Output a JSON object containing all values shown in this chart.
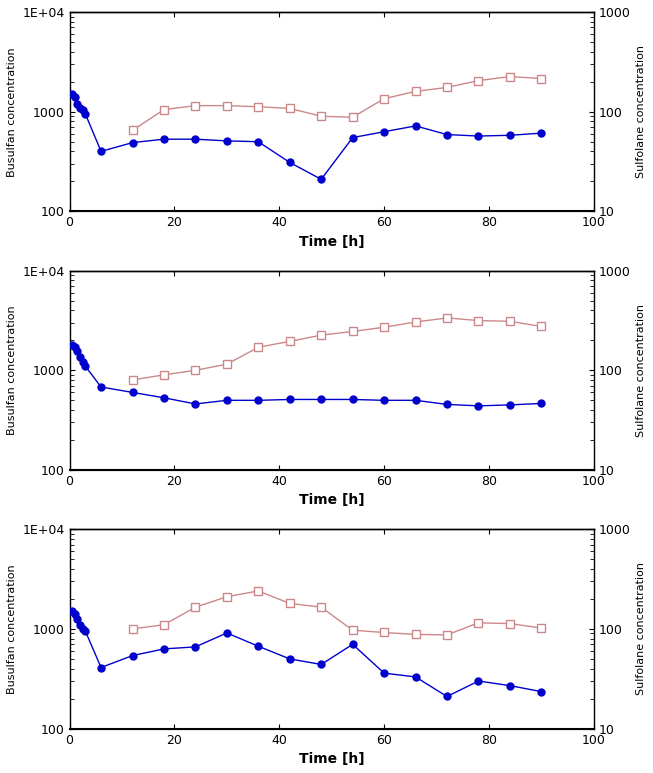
{
  "panel1": {
    "busulfan_x": [
      0.5,
      1,
      1.5,
      2,
      2.5,
      3,
      6,
      12,
      18,
      24,
      30,
      36,
      42,
      48,
      54,
      60,
      66,
      72,
      78,
      84,
      90
    ],
    "busulfan_y": [
      1500,
      1400,
      1200,
      1100,
      1050,
      950,
      400,
      490,
      530,
      530,
      510,
      500,
      310,
      210,
      550,
      630,
      720,
      590,
      570,
      580,
      610
    ],
    "sulfolane_x": [
      12,
      18,
      24,
      30,
      36,
      42,
      48,
      54,
      60,
      66,
      72,
      78,
      84,
      90
    ],
    "sulfolane_y": [
      65,
      105,
      115,
      115,
      112,
      108,
      90,
      88,
      135,
      160,
      175,
      205,
      225,
      215
    ]
  },
  "panel2": {
    "busulfan_x": [
      0.5,
      1,
      1.5,
      2,
      2.5,
      3,
      6,
      12,
      18,
      24,
      30,
      36,
      42,
      48,
      54,
      60,
      66,
      72,
      78,
      84,
      90
    ],
    "busulfan_y": [
      1800,
      1700,
      1550,
      1350,
      1200,
      1100,
      680,
      600,
      530,
      460,
      500,
      500,
      510,
      510,
      510,
      500,
      500,
      455,
      440,
      450,
      465
    ],
    "sulfolane_x": [
      12,
      18,
      24,
      30,
      36,
      42,
      48,
      54,
      60,
      66,
      72,
      78,
      84,
      90
    ],
    "sulfolane_y": [
      80,
      90,
      100,
      115,
      170,
      195,
      225,
      245,
      270,
      305,
      335,
      315,
      310,
      275
    ]
  },
  "panel3": {
    "busulfan_x": [
      0.5,
      1,
      1.5,
      2,
      2.5,
      3,
      6,
      12,
      18,
      24,
      30,
      36,
      42,
      48,
      54,
      60,
      66,
      72,
      78,
      84,
      90
    ],
    "busulfan_y": [
      1500,
      1400,
      1250,
      1100,
      1000,
      950,
      410,
      540,
      630,
      660,
      910,
      670,
      500,
      440,
      700,
      360,
      330,
      210,
      300,
      270,
      235
    ],
    "sulfolane_x": [
      12,
      18,
      24,
      30,
      36,
      42,
      48,
      54,
      60,
      66,
      72,
      78,
      84,
      90
    ],
    "sulfolane_y": [
      100,
      110,
      165,
      210,
      240,
      180,
      165,
      97,
      92,
      88,
      87,
      115,
      113,
      102
    ]
  },
  "busulfan_color": "#0000cc",
  "sulfolane_color": "#cc8888",
  "ylim_log": [
    100,
    10000
  ],
  "y2lim_log": [
    10,
    1000
  ],
  "xlim": [
    0,
    100
  ],
  "xlabel": "Time [h]",
  "ylabel_left": "Busulfan concentration",
  "ylabel_right": "Sulfolane concentration",
  "yticks_left": [
    100,
    1000,
    10000
  ],
  "yticks_right": [
    10,
    100,
    1000
  ],
  "xticks": [
    0,
    20,
    40,
    60,
    80,
    100
  ]
}
